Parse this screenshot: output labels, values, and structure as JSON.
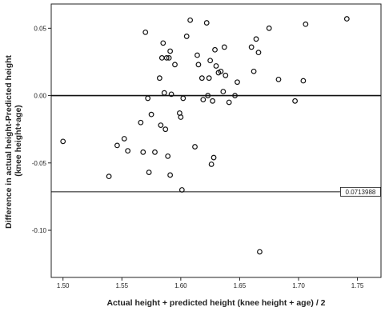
{
  "chart_data": {
    "type": "scatter",
    "xlabel": "Actual height + predicted height (knee height + age) / 2",
    "ylabel": "Difference in actual height-Predicted height (knee height+age)",
    "xlim": [
      1.49,
      1.77
    ],
    "ylim": [
      -0.135,
      0.068
    ],
    "x_ticks": [
      {
        "value": 1.5,
        "label": "1.50"
      },
      {
        "value": 1.55,
        "label": "1.55"
      },
      {
        "value": 1.6,
        "label": "1.60"
      },
      {
        "value": 1.65,
        "label": "1.65"
      },
      {
        "value": 1.7,
        "label": "1.70"
      },
      {
        "value": 1.75,
        "label": "1.75"
      }
    ],
    "y_ticks": [
      {
        "value": 0.05,
        "label": "0.05"
      },
      {
        "value": 0.0,
        "label": "0.00"
      },
      {
        "value": -0.05,
        "label": "-0.05"
      },
      {
        "value": -0.1,
        "label": "-0.10"
      }
    ],
    "reference_lines": [
      {
        "value": 0.0,
        "label": ""
      },
      {
        "value": -0.0714,
        "label": "0.0713988"
      }
    ],
    "grid": false,
    "marker": "open-circle",
    "points": [
      {
        "x": 1.5,
        "y": -0.034
      },
      {
        "x": 1.539,
        "y": -0.06
      },
      {
        "x": 1.546,
        "y": -0.037
      },
      {
        "x": 1.552,
        "y": -0.032
      },
      {
        "x": 1.555,
        "y": -0.041
      },
      {
        "x": 1.566,
        "y": -0.02
      },
      {
        "x": 1.568,
        "y": -0.042
      },
      {
        "x": 1.57,
        "y": 0.047
      },
      {
        "x": 1.572,
        "y": -0.002
      },
      {
        "x": 1.573,
        "y": -0.057
      },
      {
        "x": 1.575,
        "y": -0.014
      },
      {
        "x": 1.578,
        "y": -0.042
      },
      {
        "x": 1.582,
        "y": 0.013
      },
      {
        "x": 1.583,
        "y": -0.022
      },
      {
        "x": 1.584,
        "y": 0.028
      },
      {
        "x": 1.585,
        "y": 0.039
      },
      {
        "x": 1.586,
        "y": 0.002
      },
      {
        "x": 1.587,
        "y": -0.025
      },
      {
        "x": 1.588,
        "y": 0.028
      },
      {
        "x": 1.589,
        "y": -0.045
      },
      {
        "x": 1.59,
        "y": 0.028
      },
      {
        "x": 1.591,
        "y": 0.033
      },
      {
        "x": 1.592,
        "y": 0.001
      },
      {
        "x": 1.591,
        "y": -0.059
      },
      {
        "x": 1.595,
        "y": 0.023
      },
      {
        "x": 1.599,
        "y": -0.013
      },
      {
        "x": 1.6,
        "y": -0.016
      },
      {
        "x": 1.601,
        "y": -0.07
      },
      {
        "x": 1.602,
        "y": -0.002
      },
      {
        "x": 1.605,
        "y": 0.044
      },
      {
        "x": 1.608,
        "y": 0.056
      },
      {
        "x": 1.612,
        "y": -0.038
      },
      {
        "x": 1.614,
        "y": 0.03
      },
      {
        "x": 1.615,
        "y": 0.023
      },
      {
        "x": 1.618,
        "y": 0.013
      },
      {
        "x": 1.619,
        "y": -0.003
      },
      {
        "x": 1.622,
        "y": 0.054
      },
      {
        "x": 1.623,
        "y": 0.0
      },
      {
        "x": 1.624,
        "y": 0.013
      },
      {
        "x": 1.625,
        "y": 0.026
      },
      {
        "x": 1.626,
        "y": -0.051
      },
      {
        "x": 1.627,
        "y": -0.004
      },
      {
        "x": 1.628,
        "y": -0.046
      },
      {
        "x": 1.629,
        "y": 0.034
      },
      {
        "x": 1.63,
        "y": 0.022
      },
      {
        "x": 1.632,
        "y": 0.017
      },
      {
        "x": 1.634,
        "y": 0.018
      },
      {
        "x": 1.636,
        "y": 0.003
      },
      {
        "x": 1.637,
        "y": 0.036
      },
      {
        "x": 1.638,
        "y": 0.015
      },
      {
        "x": 1.641,
        "y": -0.005
      },
      {
        "x": 1.646,
        "y": 0.0
      },
      {
        "x": 1.648,
        "y": 0.01
      },
      {
        "x": 1.66,
        "y": 0.036
      },
      {
        "x": 1.662,
        "y": 0.018
      },
      {
        "x": 1.664,
        "y": 0.042
      },
      {
        "x": 1.666,
        "y": 0.032
      },
      {
        "x": 1.667,
        "y": -0.116
      },
      {
        "x": 1.675,
        "y": 0.05
      },
      {
        "x": 1.683,
        "y": 0.012
      },
      {
        "x": 1.697,
        "y": -0.004
      },
      {
        "x": 1.704,
        "y": 0.011
      },
      {
        "x": 1.706,
        "y": 0.053
      },
      {
        "x": 1.741,
        "y": 0.057
      }
    ]
  }
}
